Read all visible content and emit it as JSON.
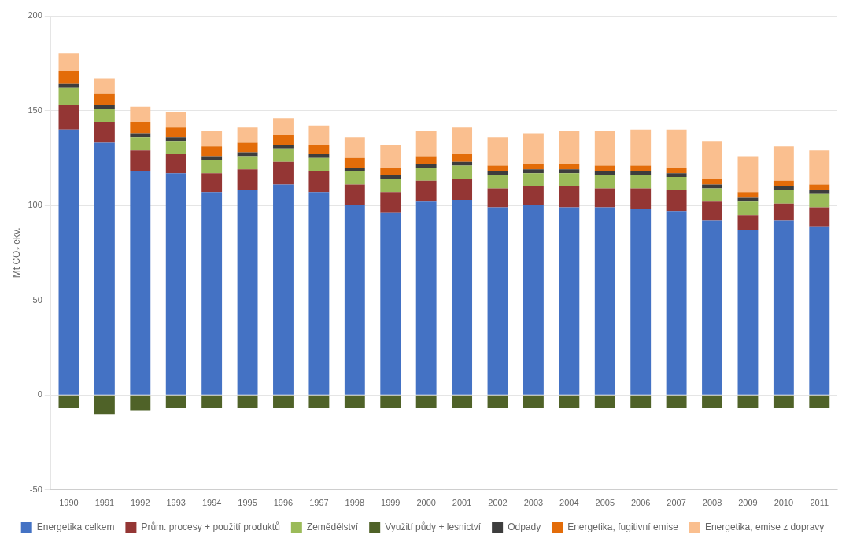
{
  "chart_data": {
    "type": "bar",
    "stacked": true,
    "categories": [
      "1990",
      "1991",
      "1992",
      "1993",
      "1994",
      "1995",
      "1996",
      "1997",
      "1998",
      "1999",
      "2000",
      "2001",
      "2002",
      "2003",
      "2004",
      "2005",
      "2006",
      "2007",
      "2008",
      "2009",
      "2010",
      "2011"
    ],
    "series": [
      {
        "name": "Energetika celkem",
        "color": "#4472C4",
        "values": [
          140,
          133,
          118,
          117,
          107,
          108,
          111,
          107,
          100,
          96,
          102,
          103,
          99,
          100,
          99,
          99,
          98,
          97,
          92,
          87,
          92,
          89
        ]
      },
      {
        "name": "Prům. procesy + použití produktů",
        "color": "#943634",
        "values": [
          13,
          11,
          11,
          10,
          10,
          11,
          12,
          11,
          11,
          11,
          11,
          11,
          10,
          10,
          11,
          10,
          11,
          11,
          10,
          8,
          9,
          10
        ]
      },
      {
        "name": "Zemědělství",
        "color": "#9BBB59",
        "values": [
          9,
          7,
          7,
          7,
          7,
          7,
          7,
          7,
          7,
          7,
          7,
          7,
          7,
          7,
          7,
          7,
          7,
          7,
          7,
          7,
          7,
          7
        ]
      },
      {
        "name": "Využití půdy + lesnictví",
        "color": "#4F6228",
        "values": [
          -7,
          -10,
          -8,
          -7,
          -7,
          -7,
          -7,
          -7,
          -7,
          -7,
          -7,
          -7,
          -7,
          -7,
          -7,
          -7,
          -7,
          -7,
          -7,
          -7,
          -7,
          -7
        ]
      },
      {
        "name": "Odpady",
        "color": "#3D3D3D",
        "values": [
          2,
          2,
          2,
          2,
          2,
          2,
          2,
          2,
          2,
          2,
          2,
          2,
          2,
          2,
          2,
          2,
          2,
          2,
          2,
          2,
          2,
          2
        ]
      },
      {
        "name": "Energetika, fugitivní emise",
        "color": "#E36C09",
        "values": [
          7,
          6,
          6,
          5,
          5,
          5,
          5,
          5,
          5,
          4,
          4,
          4,
          3,
          3,
          3,
          3,
          3,
          3,
          3,
          3,
          3,
          3
        ]
      },
      {
        "name": "Energetika, emise z dopravy",
        "color": "#FABF8F",
        "values": [
          9,
          8,
          8,
          8,
          8,
          8,
          9,
          10,
          11,
          12,
          13,
          14,
          15,
          16,
          17,
          18,
          19,
          20,
          20,
          19,
          18,
          18
        ]
      }
    ],
    "ylabel": "Mt CO₂ ekv.",
    "ylim": [
      -50,
      200
    ],
    "yticks": [
      -50,
      0,
      50,
      100,
      150,
      200
    ],
    "grid": true,
    "legend": "bottom"
  }
}
